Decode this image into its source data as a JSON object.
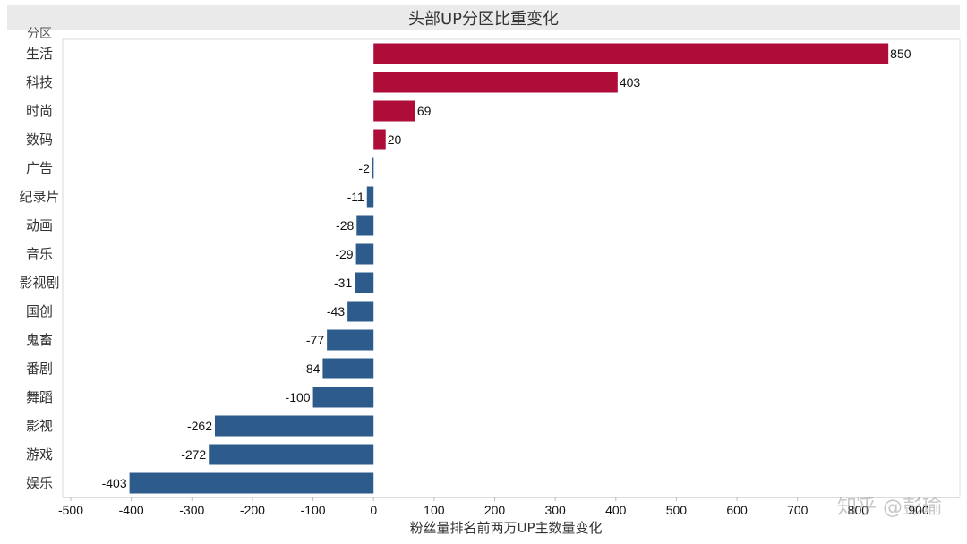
{
  "chart_data": {
    "type": "bar",
    "orientation": "horizontal",
    "title": "头部UP分区比重变化",
    "row_header": "分区",
    "xlabel": "粉丝量排名前两万UP主数量变化",
    "categories": [
      "生活",
      "科技",
      "时尚",
      "数码",
      "广告",
      "纪录片",
      "动画",
      "音乐",
      "影视剧",
      "国创",
      "鬼畜",
      "番剧",
      "舞蹈",
      "影视",
      "游戏",
      "娱乐"
    ],
    "values": [
      850,
      403,
      69,
      20,
      -2,
      -11,
      -28,
      -29,
      -31,
      -43,
      -77,
      -84,
      -100,
      -262,
      -272,
      -403
    ],
    "xlim": [
      -500,
      900
    ],
    "xticks": [
      -500,
      -400,
      -300,
      -200,
      -100,
      0,
      100,
      200,
      300,
      400,
      500,
      600,
      700,
      800,
      900
    ],
    "colors": {
      "positive": "#ae0d3a",
      "negative": "#2d5b8c"
    },
    "grid": false
  },
  "watermark": "知乎 @彭瑜"
}
